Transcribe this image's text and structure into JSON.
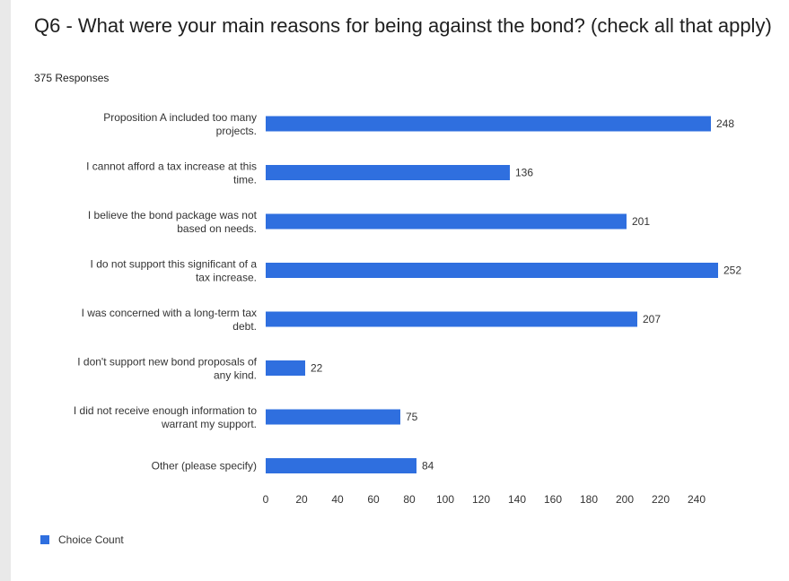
{
  "title": "Q6 - What were your main reasons for being against the bond? (check all that apply)",
  "subtitle": "375 Responses",
  "chart_data": {
    "type": "bar",
    "orientation": "horizontal",
    "categories": [
      [
        "Proposition A included too many",
        "projects."
      ],
      [
        "I cannot afford a tax increase at this",
        "time."
      ],
      [
        "I believe the bond package was not",
        "based on needs."
      ],
      [
        "I do not support this significant of a",
        "tax increase."
      ],
      [
        "I was concerned with a long-term tax",
        "debt."
      ],
      [
        "I don't support new bond proposals of",
        "any kind."
      ],
      [
        "I did not receive enough information to",
        "warrant my support."
      ],
      [
        "Other (please specify)"
      ]
    ],
    "series": [
      {
        "name": "Choice Count",
        "values": [
          248,
          136,
          201,
          252,
          207,
          22,
          75,
          84
        ],
        "color": "#2f6fdf"
      }
    ],
    "xlim": [
      0,
      255
    ],
    "xticks": [
      0,
      20,
      40,
      60,
      80,
      100,
      120,
      140,
      160,
      180,
      200,
      220,
      240
    ],
    "grid": false,
    "legend": "bottom-left",
    "data_labels": true
  }
}
